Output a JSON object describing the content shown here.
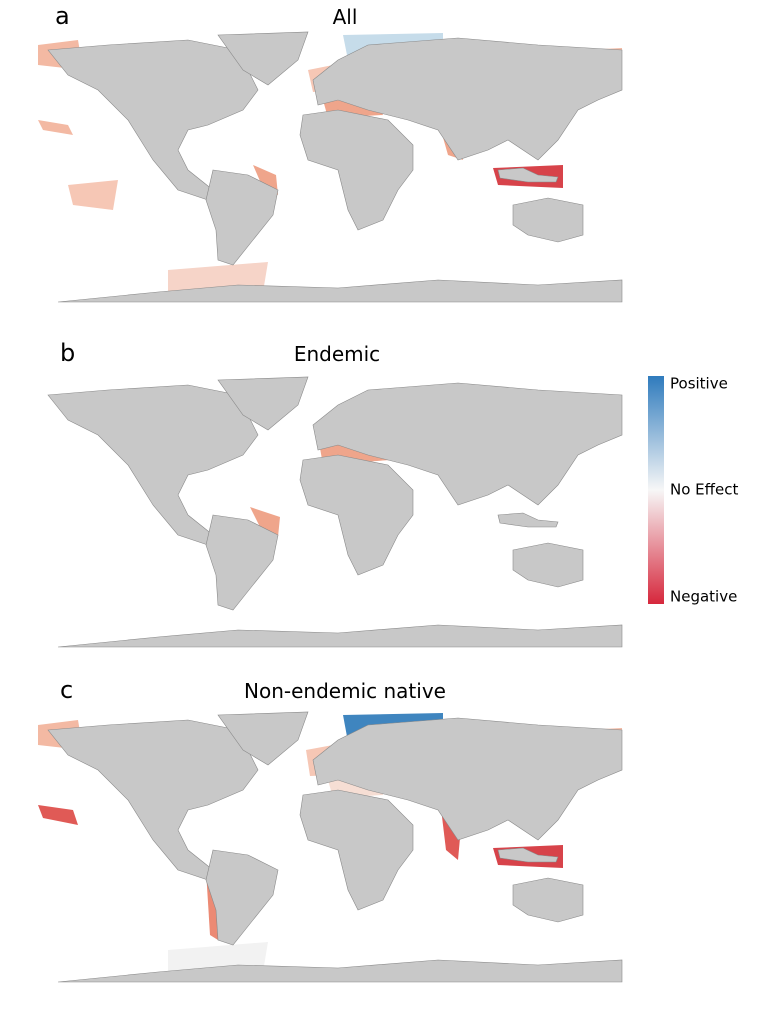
{
  "panels": [
    {
      "letter": "a",
      "title": "All"
    },
    {
      "letter": "b",
      "title": "Endemic"
    },
    {
      "letter": "c",
      "title": "Non-endemic native"
    }
  ],
  "legend": {
    "labels": [
      "Positive",
      "No Effect",
      "Negative"
    ],
    "colors": [
      "#2f7bbd",
      "#f7f7f7",
      "#d6273c"
    ]
  }
}
